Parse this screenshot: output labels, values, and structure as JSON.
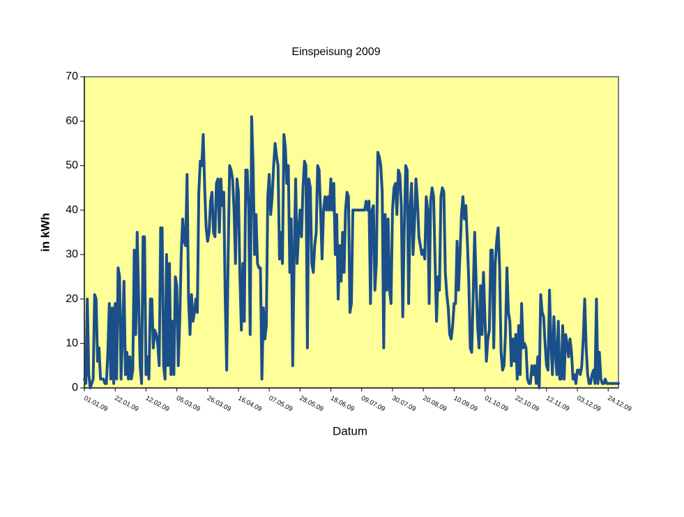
{
  "chart_data": {
    "type": "line",
    "title": "Einspeisung 2009",
    "x_label": "Datum",
    "y_label": "in kWh",
    "color": "#1b4f8a",
    "background": "#ffff99",
    "grid": false,
    "ylim": [
      0,
      70
    ],
    "yticks": [
      0,
      10,
      20,
      30,
      40,
      50,
      60,
      70
    ],
    "categories": [
      "01.01.09",
      null,
      null,
      null,
      null,
      null,
      null,
      null,
      null,
      null,
      null,
      null,
      null,
      null,
      null,
      null,
      null,
      null,
      null,
      null,
      null,
      "22.01.09",
      null,
      null,
      null,
      null,
      null,
      null,
      null,
      null,
      null,
      null,
      null,
      null,
      null,
      null,
      null,
      null,
      null,
      null,
      null,
      null,
      "12.02.09",
      null,
      null,
      null,
      null,
      null,
      null,
      null,
      null,
      null,
      null,
      null,
      null,
      null,
      null,
      null,
      null,
      null,
      null,
      null,
      null,
      "05.03.09",
      null,
      null,
      null,
      null,
      null,
      null,
      null,
      null,
      null,
      null,
      null,
      null,
      null,
      null,
      null,
      null,
      null,
      null,
      null,
      null,
      "26.03.09",
      null,
      null,
      null,
      null,
      null,
      null,
      null,
      null,
      null,
      null,
      null,
      null,
      null,
      null,
      null,
      null,
      null,
      null,
      null,
      null,
      "16.04.09",
      null,
      null,
      null,
      null,
      null,
      null,
      null,
      null,
      null,
      null,
      null,
      null,
      null,
      null,
      null,
      null,
      null,
      null,
      null,
      null,
      "07.05.09",
      null,
      null,
      null,
      null,
      null,
      null,
      null,
      null,
      null,
      null,
      null,
      null,
      null,
      null,
      null,
      null,
      null,
      null,
      null,
      null,
      "28.05.09",
      null,
      null,
      null,
      null,
      null,
      null,
      null,
      null,
      null,
      null,
      null,
      null,
      null,
      null,
      null,
      null,
      null,
      null,
      null,
      null,
      "18.06.09",
      null,
      null,
      null,
      null,
      null,
      null,
      null,
      null,
      null,
      null,
      null,
      null,
      null,
      null,
      null,
      null,
      null,
      null,
      null,
      null,
      "09.07.09",
      null,
      null,
      null,
      null,
      null,
      null,
      null,
      null,
      null,
      null,
      null,
      null,
      null,
      null,
      null,
      null,
      null,
      null,
      null,
      null,
      "30.07.09",
      null,
      null,
      null,
      null,
      null,
      null,
      null,
      null,
      null,
      null,
      null,
      null,
      null,
      null,
      null,
      null,
      null,
      null,
      null,
      null,
      "20.08.09",
      null,
      null,
      null,
      null,
      null,
      null,
      null,
      null,
      null,
      null,
      null,
      null,
      null,
      null,
      null,
      null,
      null,
      null,
      null,
      null,
      "10.09.09",
      null,
      null,
      null,
      null,
      null,
      null,
      null,
      null,
      null,
      null,
      null,
      null,
      null,
      null,
      null,
      null,
      null,
      null,
      null,
      null,
      "01.10.09",
      null,
      null,
      null,
      null,
      null,
      null,
      null,
      null,
      null,
      null,
      null,
      null,
      null,
      null,
      null,
      null,
      null,
      null,
      null,
      null,
      "22.10.09",
      null,
      null,
      null,
      null,
      null,
      null,
      null,
      null,
      null,
      null,
      null,
      null,
      null,
      null,
      null,
      null,
      null,
      null,
      null,
      null,
      "12.11.09",
      null,
      null,
      null,
      null,
      null,
      null,
      null,
      null,
      null,
      null,
      null,
      null,
      null,
      null,
      null,
      null,
      null,
      null,
      null,
      null,
      "03.12.09",
      null,
      null,
      null,
      null,
      null,
      null,
      null,
      null,
      null,
      null,
      null,
      null,
      null,
      null,
      null,
      null,
      null,
      null,
      null,
      null,
      "24.12.09",
      null,
      null,
      null,
      null,
      null,
      null,
      null
    ],
    "values": [
      2,
      1,
      20,
      3,
      0,
      1,
      2,
      21,
      20,
      6,
      9,
      2,
      2,
      2,
      1,
      1,
      8,
      19,
      2,
      18,
      1,
      19,
      2,
      27,
      25,
      2,
      12,
      24,
      3,
      8,
      2,
      7,
      2,
      4,
      31,
      12,
      35,
      20,
      5,
      1,
      34,
      34,
      3,
      7,
      2,
      20,
      20,
      9,
      13,
      12,
      10,
      5,
      36,
      36,
      5,
      2,
      30,
      5,
      28,
      3,
      15,
      3,
      25,
      23,
      5,
      15,
      30,
      38,
      33,
      32,
      48,
      20,
      12,
      21,
      15,
      17,
      20,
      17,
      44,
      51,
      50,
      57,
      45,
      36,
      33,
      35,
      42,
      44,
      35,
      34,
      46,
      47,
      35,
      47,
      41,
      44,
      20,
      4,
      30,
      50,
      49,
      47,
      40,
      28,
      47,
      44,
      25,
      13,
      28,
      15,
      49,
      49,
      40,
      12,
      61,
      50,
      30,
      39,
      28,
      27,
      27,
      2,
      18,
      11,
      14,
      43,
      48,
      39,
      43,
      50,
      55,
      52,
      50,
      29,
      35,
      28,
      57,
      54,
      46,
      50,
      26,
      38,
      5,
      30,
      47,
      28,
      35,
      40,
      34,
      45,
      51,
      50,
      9,
      47,
      45,
      28,
      26,
      32,
      35,
      50,
      49,
      40,
      29,
      40,
      43,
      40,
      43,
      40,
      47,
      40,
      46,
      30,
      39,
      20,
      32,
      24,
      35,
      26,
      40,
      44,
      43,
      17,
      19,
      40,
      40,
      40,
      40,
      40,
      40,
      40,
      40,
      40,
      42,
      40,
      42,
      19,
      40,
      41,
      22,
      28,
      53,
      52,
      50,
      44,
      9,
      39,
      22,
      38,
      22,
      19,
      40,
      45,
      46,
      39,
      49,
      48,
      41,
      16,
      35,
      50,
      49,
      19,
      40,
      46,
      30,
      37,
      47,
      42,
      34,
      32,
      30,
      31,
      29,
      43,
      40,
      19,
      42,
      45,
      43,
      29,
      15,
      25,
      22,
      43,
      45,
      44,
      26,
      21,
      18,
      12,
      11,
      14,
      19,
      19,
      33,
      22,
      30,
      39,
      43,
      38,
      41,
      33,
      24,
      9,
      8,
      21,
      35,
      24,
      14,
      9,
      23,
      12,
      26,
      16,
      6,
      11,
      13,
      31,
      31,
      9,
      28,
      33,
      36,
      27,
      8,
      4,
      5,
      12,
      27,
      17,
      15,
      5,
      11,
      6,
      12,
      2,
      14,
      3,
      19,
      9,
      10,
      9,
      2,
      1,
      1,
      5,
      3,
      5,
      1,
      7,
      0,
      21,
      17,
      16,
      10,
      5,
      4,
      22,
      10,
      3,
      16,
      8,
      3,
      15,
      2,
      2,
      14,
      2,
      12,
      10,
      7,
      11,
      8,
      2,
      3,
      1,
      4,
      4,
      3,
      5,
      11,
      20,
      9,
      3,
      1,
      1,
      3,
      4,
      1,
      20,
      1,
      8,
      2,
      1,
      1,
      2,
      1,
      1,
      1,
      1,
      1,
      1,
      1,
      1,
      1
    ]
  }
}
